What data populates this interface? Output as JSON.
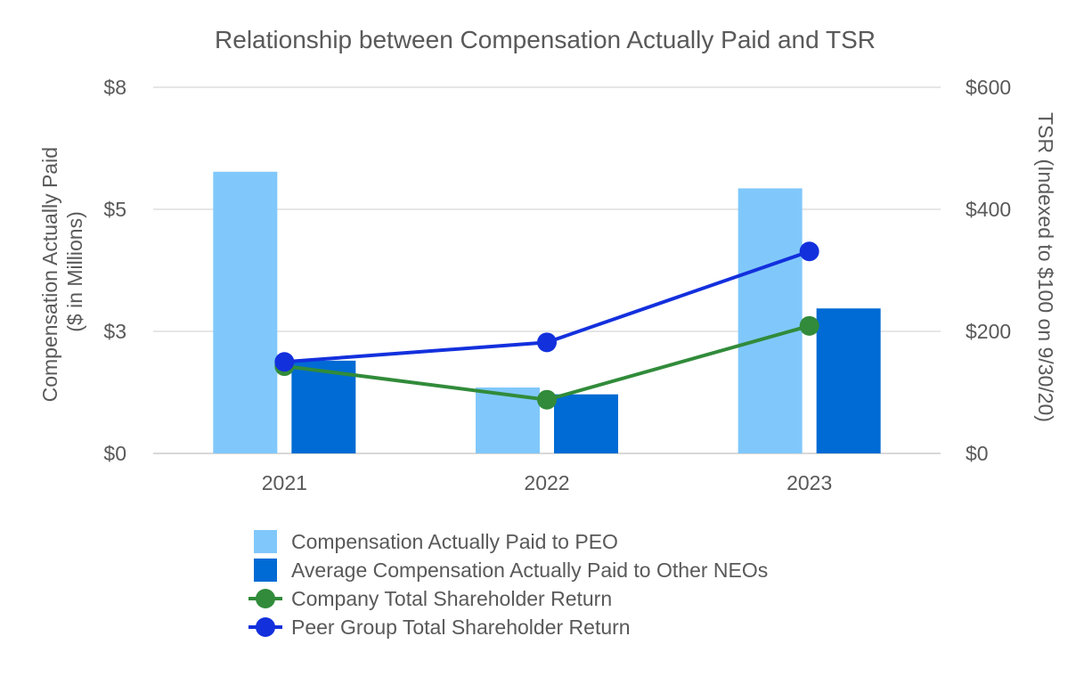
{
  "chart_data": {
    "type": "bar",
    "title": "Relationship between Compensation Actually Paid and TSR",
    "categories": [
      "2021",
      "2022",
      "2023"
    ],
    "y_left": {
      "label_lines": [
        "Compensation Actually Paid",
        "($ in Millions)"
      ],
      "range": [
        0,
        7.5
      ],
      "tick_values": [
        0,
        2.5,
        5,
        7.5
      ],
      "tick_labels": [
        "$0",
        "$3",
        "$5",
        "$8"
      ]
    },
    "y_right": {
      "label": "TSR (Indexed to $100 on 9/30/20)",
      "range": [
        0,
        600
      ],
      "tick_values": [
        0,
        200,
        400,
        600
      ],
      "tick_labels": [
        "$0",
        "$200",
        "$400",
        "$600"
      ]
    },
    "grid": true,
    "legend_position": "bottom",
    "series": [
      {
        "name": "Compensation Actually Paid to PEO",
        "kind": "bar",
        "axis": "left",
        "color": "#80c8fb",
        "values": [
          5.77,
          1.35,
          5.43
        ]
      },
      {
        "name": "Average Compensation Actually Paid to Other NEOs",
        "kind": "bar",
        "axis": "left",
        "color": "#006bd4",
        "values": [
          1.9,
          1.21,
          2.97
        ]
      },
      {
        "name": "Company Total Shareholder Return",
        "kind": "line",
        "axis": "right",
        "color": "#318b3a",
        "values": [
          143,
          88,
          209
        ]
      },
      {
        "name": "Peer Group Total Shareholder Return",
        "kind": "line",
        "axis": "right",
        "color": "#1330dd",
        "values": [
          150,
          182,
          331
        ]
      }
    ]
  }
}
